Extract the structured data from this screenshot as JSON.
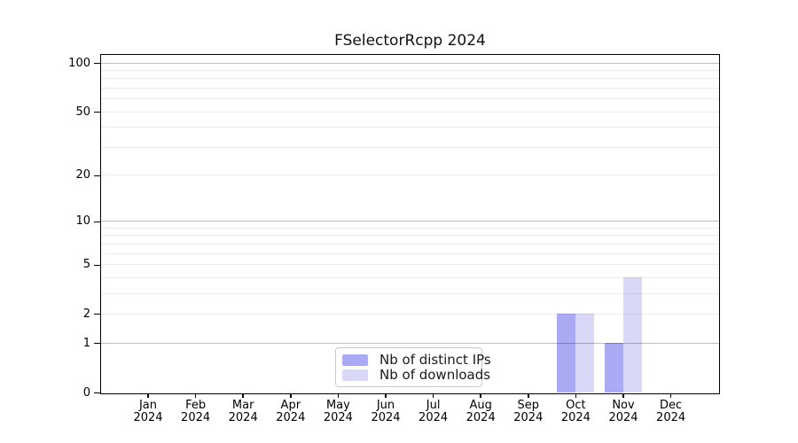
{
  "chart_data": {
    "type": "bar",
    "title": "FSelectorRcpp 2024",
    "x_tick_months": [
      "Jan",
      "Feb",
      "Mar",
      "Apr",
      "May",
      "Jun",
      "Jul",
      "Aug",
      "Sep",
      "Oct",
      "Nov",
      "Dec"
    ],
    "x_tick_year": "2024",
    "series": [
      {
        "name": "Nb of distinct IPs",
        "color": "#a9a9f4",
        "values": [
          0,
          0,
          0,
          0,
          0,
          0,
          0,
          0,
          0,
          2,
          1,
          0
        ]
      },
      {
        "name": "Nb of downloads",
        "color": "#d9d9f7",
        "values": [
          0,
          0,
          0,
          0,
          0,
          0,
          0,
          0,
          0,
          2,
          4,
          0
        ]
      }
    ],
    "y_axis": {
      "scale": "log1p",
      "tick_values": [
        0,
        1,
        2,
        5,
        10,
        20,
        50,
        100
      ],
      "range": [
        0,
        112
      ],
      "major_grid_values": [
        1,
        10,
        100
      ],
      "minor_grid_values": [
        2,
        3,
        4,
        5,
        6,
        7,
        8,
        9,
        20,
        30,
        40,
        50,
        60,
        70,
        80,
        90
      ]
    },
    "legend": {
      "position": "lower center"
    },
    "colors": {
      "grid_major": "rgba(0,0,0,0.25)",
      "grid_minor": "rgba(0,0,0,0.08)",
      "spine": "#000000",
      "background": "#ffffff"
    }
  }
}
